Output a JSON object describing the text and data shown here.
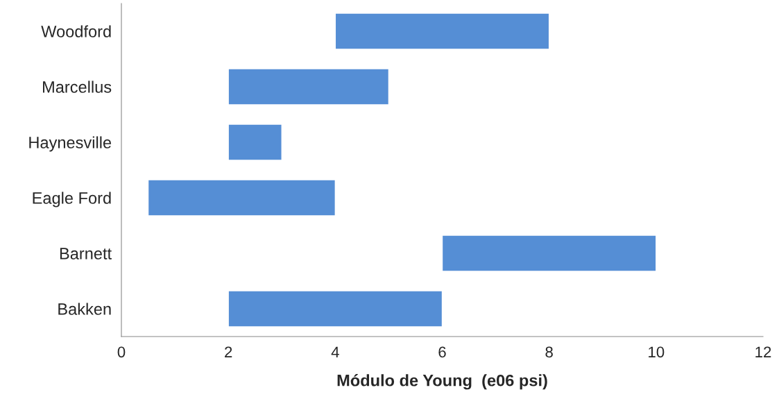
{
  "chart_data": {
    "type": "bar",
    "orientation": "horizontal",
    "xlabel": "Módulo de Young  (e06 psi)",
    "categories": [
      "Woodford",
      "Marcellus",
      "Haynesville",
      "Eagle Ford",
      "Barnett",
      "Bakken"
    ],
    "base": [
      4,
      2,
      2,
      0.5,
      6,
      2
    ],
    "values": [
      4,
      3,
      1,
      3.5,
      4,
      4
    ],
    "color": "#558ed5",
    "xlim": [
      0,
      12
    ],
    "xticks": [
      0,
      2,
      4,
      6,
      8,
      10,
      12
    ],
    "grid": false,
    "legend": false
  }
}
